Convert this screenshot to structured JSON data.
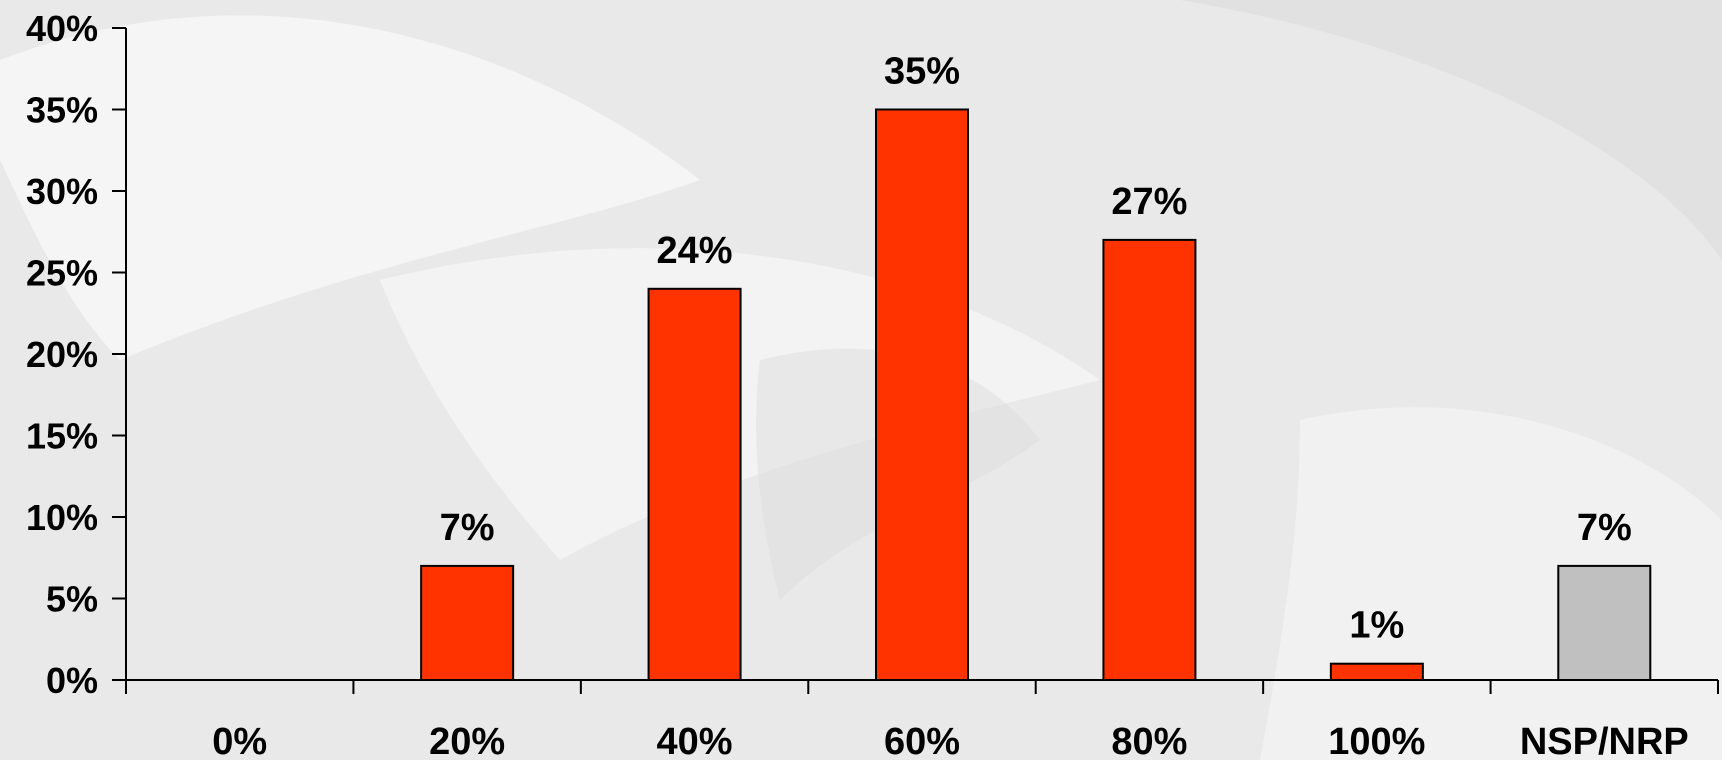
{
  "chart_data": {
    "type": "bar",
    "title": "",
    "xlabel": "",
    "ylabel": "",
    "categories": [
      "0%",
      "20%",
      "40%",
      "60%",
      "80%",
      "100%",
      "NSP/NRP"
    ],
    "values": [
      0,
      7,
      24,
      35,
      27,
      1,
      7
    ],
    "data_labels": [
      "",
      "7%",
      "24%",
      "35%",
      "27%",
      "1%",
      "7%"
    ],
    "bar_colors": [
      "#ff3300",
      "#ff3300",
      "#ff3300",
      "#ff3300",
      "#ff3300",
      "#ff3300",
      "#c0c0c0"
    ],
    "ylim": [
      0,
      40
    ],
    "yticks": [
      0,
      5,
      10,
      15,
      20,
      25,
      30,
      35,
      40
    ],
    "ytick_labels": [
      "0%",
      "5%",
      "10%",
      "15%",
      "20%",
      "25%",
      "30%",
      "35%",
      "40%"
    ],
    "grid": false,
    "legend": "none"
  }
}
